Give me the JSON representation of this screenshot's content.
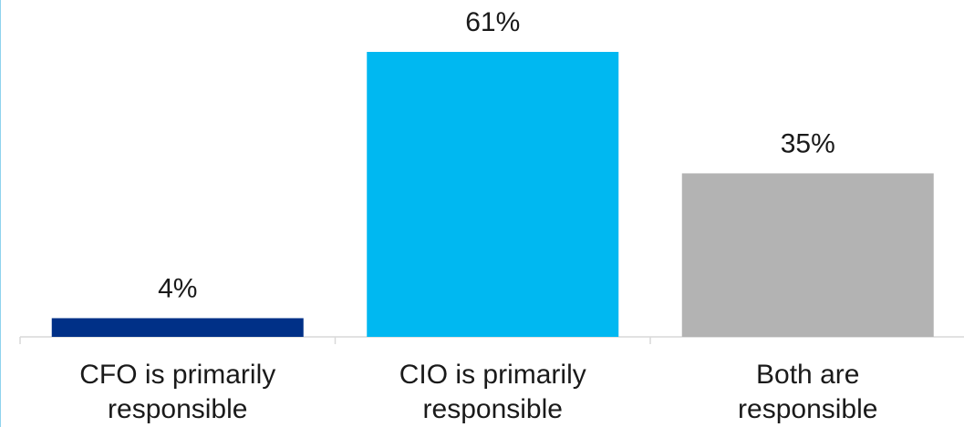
{
  "chart_data": {
    "type": "bar",
    "categories": [
      [
        "CFO is primarily",
        "responsible"
      ],
      [
        "CIO is primarily",
        "responsible"
      ],
      [
        "Both are",
        "responsible"
      ]
    ],
    "values": [
      4,
      61,
      35
    ],
    "value_labels": [
      "4%",
      "61%",
      "35%"
    ],
    "colors": [
      "#003087",
      "#00b8f1",
      "#b3b3b3"
    ],
    "ylim": [
      0,
      61
    ],
    "grid": false,
    "legend": "none",
    "title": "",
    "xlabel": "",
    "ylabel": ""
  }
}
